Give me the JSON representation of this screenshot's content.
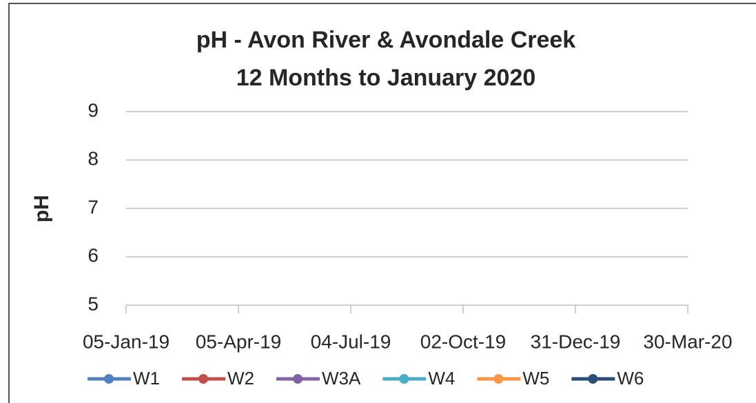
{
  "chart_data": {
    "type": "line",
    "title": "pH - Avon River & Avondale Creek",
    "subtitle": "12 Months to January 2020",
    "ylabel": "pH",
    "ylim": [
      5,
      9
    ],
    "yticks": [
      5,
      6,
      7,
      8,
      9
    ],
    "grid": true,
    "xlim": [
      43470,
      43920
    ],
    "xticks": [
      {
        "value": 43470,
        "label": "05-Jan-19"
      },
      {
        "value": 43560,
        "label": "05-Apr-19"
      },
      {
        "value": 43650,
        "label": "04-Jul-19"
      },
      {
        "value": 43740,
        "label": "02-Oct-19"
      },
      {
        "value": 43830,
        "label": "31-Dec-19"
      },
      {
        "value": 43920,
        "label": "30-Mar-20"
      }
    ],
    "legend": "bottom",
    "series": [
      {
        "name": "W1",
        "color": "#4f81bd",
        "values": []
      },
      {
        "name": "W2",
        "color": "#c0504d",
        "values": []
      },
      {
        "name": "W3A",
        "color": "#8064a2",
        "values": []
      },
      {
        "name": "W4",
        "color": "#4bacc6",
        "values": []
      },
      {
        "name": "W5",
        "color": "#f79646",
        "values": []
      },
      {
        "name": "W6",
        "color": "#2c4d75",
        "values": []
      }
    ]
  }
}
